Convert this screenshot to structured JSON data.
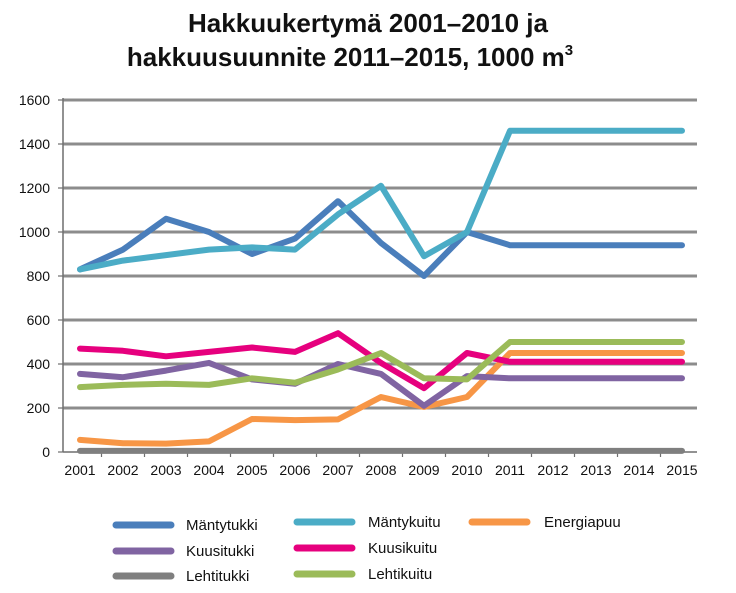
{
  "chart_data": {
    "type": "line",
    "title_line1": "Hakkuukertymä 2001–2010 ja",
    "title_line2": "hakkuusuunnite 2011–2015, 1000 m",
    "title_sup": "3",
    "x": [
      "2001",
      "2002",
      "2003",
      "2004",
      "2005",
      "2006",
      "2007",
      "2008",
      "2009",
      "2010",
      "2011",
      "2012",
      "2013",
      "2014",
      "2015"
    ],
    "yticks": [
      "0",
      "200",
      "400",
      "600",
      "800",
      "1000",
      "1200",
      "1400",
      "1600"
    ],
    "ylim": [
      0,
      1600
    ],
    "grid": true,
    "legend_position": "bottom",
    "series": [
      {
        "name": "Mäntytukki",
        "color": "#4a7ebb",
        "values": [
          830,
          920,
          1060,
          1000,
          900,
          970,
          1140,
          950,
          800,
          1000,
          940,
          940,
          940,
          940,
          940
        ]
      },
      {
        "name": "Mäntykuitu",
        "color": "#4bacc6",
        "values": [
          830,
          870,
          895,
          920,
          930,
          920,
          1080,
          1210,
          890,
          1000,
          1460,
          1460,
          1460,
          1460,
          1460
        ]
      },
      {
        "name": "Energiapuu",
        "color": "#f79646",
        "values": [
          55,
          40,
          38,
          48,
          150,
          145,
          148,
          250,
          205,
          250,
          450,
          450,
          450,
          450,
          450
        ]
      },
      {
        "name": "Kuusitukki",
        "color": "#8064a2",
        "values": [
          355,
          340,
          370,
          405,
          330,
          310,
          400,
          355,
          210,
          345,
          335,
          335,
          335,
          335,
          335
        ]
      },
      {
        "name": "Kuusikuitu",
        "color": "#e6007e",
        "values": [
          470,
          460,
          435,
          455,
          475,
          455,
          540,
          405,
          290,
          450,
          410,
          410,
          410,
          410,
          410
        ]
      },
      {
        "name": "Lehtitukki",
        "color": "#7f7f7f",
        "values": [
          5,
          5,
          5,
          5,
          5,
          5,
          5,
          5,
          5,
          5,
          5,
          5,
          5,
          5,
          5
        ]
      },
      {
        "name": "Lehtikuitu",
        "color": "#9bbb59",
        "values": [
          295,
          305,
          310,
          305,
          335,
          315,
          375,
          450,
          335,
          330,
          500,
          500,
          500,
          500,
          500
        ]
      }
    ]
  }
}
